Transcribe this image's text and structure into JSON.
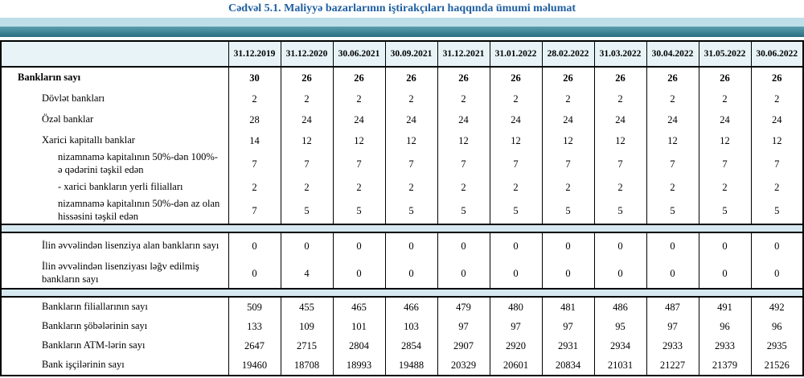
{
  "page": {
    "title": "Cədvəl 5.1. Maliyyə bazarlarının iştirakçıları haqqında ümumi məlumat"
  },
  "colors": {
    "title_color": "#1f5fa0",
    "band_light": "#bedfe7",
    "band_teal_light": "#5b9fb0",
    "band_teal_dark": "#35798c",
    "header_bg": "#e7f3f7",
    "separator_bg": "#d6e9f0",
    "border": "#000000"
  },
  "table": {
    "date_columns": [
      "31.12.2019",
      "31.12.2020",
      "30.06.2021",
      "30.09.2021",
      "31.12.2021",
      "31.01.2022",
      "28.02.2022",
      "31.03.2022",
      "30.04.2022",
      "31.05.2022",
      "30.06.2022"
    ],
    "sections": [
      {
        "rows": [
          {
            "label": "Bankların sayı",
            "indent": 0,
            "bold": true,
            "values": [
              30,
              26,
              26,
              26,
              26,
              26,
              26,
              26,
              26,
              26,
              26
            ]
          },
          {
            "label": "Dövlət bankları",
            "indent": 1,
            "bold": false,
            "values": [
              2,
              2,
              2,
              2,
              2,
              2,
              2,
              2,
              2,
              2,
              2
            ]
          },
          {
            "label": "Özəl banklar",
            "indent": 1,
            "bold": false,
            "values": [
              28,
              24,
              24,
              24,
              24,
              24,
              24,
              24,
              24,
              24,
              24
            ]
          },
          {
            "label": "Xarici kapitallı banklar",
            "indent": 1,
            "bold": false,
            "values": [
              14,
              12,
              12,
              12,
              12,
              12,
              12,
              12,
              12,
              12,
              12
            ]
          },
          {
            "label": "nizamnamə kapitalının 50%-dən 100%-ə qədərini təşkil edən",
            "indent": 2,
            "bold": false,
            "values": [
              7,
              7,
              7,
              7,
              7,
              7,
              7,
              7,
              7,
              7,
              7
            ]
          },
          {
            "label": "-  xarici bankların yerli filialları",
            "indent": 2,
            "bold": false,
            "values": [
              2,
              2,
              2,
              2,
              2,
              2,
              2,
              2,
              2,
              2,
              2
            ]
          },
          {
            "label": "nizamnamə kapitalının 50%-dən az olan hissəsini təşkil edən",
            "indent": 2,
            "bold": false,
            "values": [
              7,
              5,
              5,
              5,
              5,
              5,
              5,
              5,
              5,
              5,
              5
            ]
          }
        ]
      },
      {
        "rows": [
          {
            "label": "İlin əvvəlindən lisenziya alan bankların sayı",
            "indent": 1,
            "bold": false,
            "values": [
              0,
              0,
              0,
              0,
              0,
              0,
              0,
              0,
              0,
              0,
              0
            ]
          },
          {
            "label": "İlin əvvəlindən lisenziyası ləğv edilmiş bankların sayı",
            "indent": 1,
            "bold": false,
            "values": [
              0,
              4,
              0,
              0,
              0,
              0,
              0,
              0,
              0,
              0,
              0
            ]
          }
        ]
      },
      {
        "rows": [
          {
            "label": "Bankların filiallarının sayı",
            "indent": 1,
            "bold": false,
            "values": [
              509,
              455,
              465,
              466,
              479,
              480,
              481,
              486,
              487,
              491,
              492
            ]
          },
          {
            "label": "Bankların şöbələrinin sayı",
            "indent": 1,
            "bold": false,
            "values": [
              133,
              109,
              101,
              103,
              97,
              97,
              97,
              95,
              97,
              96,
              96
            ]
          },
          {
            "label": "Bankların ATM-lərin sayı",
            "indent": 1,
            "bold": false,
            "values": [
              2647,
              2715,
              2804,
              2854,
              2907,
              2920,
              2931,
              2934,
              2933,
              2933,
              2935
            ]
          },
          {
            "label": "Bank işçilərinin sayı",
            "indent": 1,
            "bold": false,
            "values": [
              19460,
              18708,
              18993,
              19488,
              20329,
              20601,
              20834,
              21031,
              21227,
              21379,
              21526
            ]
          }
        ]
      }
    ]
  }
}
